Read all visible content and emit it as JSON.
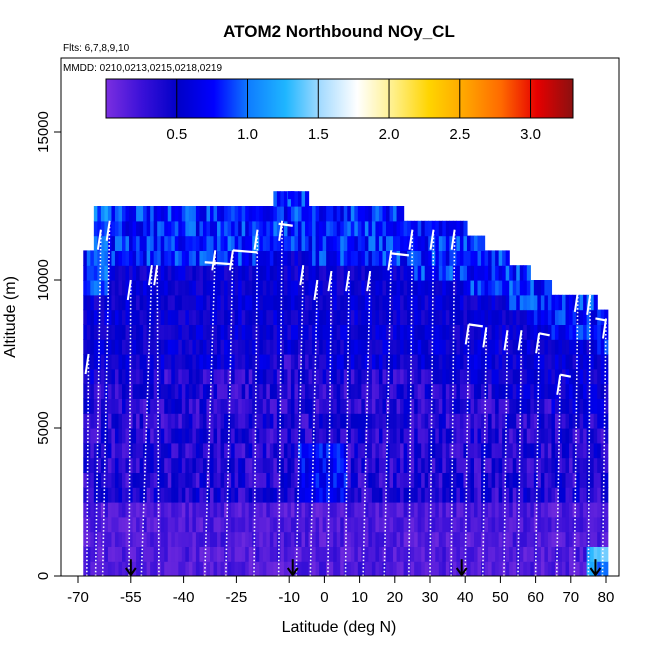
{
  "chart_data": {
    "type": "heatmap",
    "title": "ATOM2 Northbound NOy_CL",
    "flights_label": "Flts: 6,7,8,9,10",
    "dates_label": "MMDD: 0210,0213,0215,0218,0219",
    "xlabel": "Latitude (deg N)",
    "ylabel": "Altitude (m)",
    "xlim": [
      -70,
      85
    ],
    "ylim": [
      0,
      17500
    ],
    "x_ticks": [
      -70,
      -55,
      -40,
      -25,
      -10,
      0,
      10,
      20,
      30,
      40,
      50,
      60,
      70,
      80
    ],
    "x_tick_labels": [
      "-70",
      "-55",
      "-40",
      "-25",
      "-10",
      "0",
      "10",
      "20",
      "30",
      "40",
      "50",
      "60",
      "70",
      "80"
    ],
    "y_ticks": [
      0,
      5000,
      10000,
      15000
    ],
    "y_tick_labels": [
      "0",
      "5000",
      "10000",
      "15000"
    ],
    "colorbar": {
      "range": [
        0,
        3.3
      ],
      "ticks": [
        0.5,
        1.0,
        1.5,
        2.0,
        2.5,
        3.0
      ],
      "tick_labels": [
        "0.5",
        "1.0",
        "1.5",
        "2.0",
        "2.5",
        "3.0"
      ],
      "colors": [
        "#7b2fe0",
        "#3a10d8",
        "#0000c8",
        "#0000ff",
        "#0f7fff",
        "#1fb6ff",
        "#a8dcff",
        "#ffffff",
        "#fff08a",
        "#ffd400",
        "#ffa500",
        "#ff6a00",
        "#e60000",
        "#8b1010"
      ]
    },
    "column_tops": [
      {
        "lat": -68.5,
        "alt": 10000
      },
      {
        "lat": -66,
        "alt": 11000
      },
      {
        "lat": -63,
        "alt": 12500
      },
      {
        "lat": -57,
        "alt": 12500
      },
      {
        "lat": -52,
        "alt": 12500
      },
      {
        "lat": -45,
        "alt": 12500
      },
      {
        "lat": -38,
        "alt": 12500
      },
      {
        "lat": -30,
        "alt": 12500
      },
      {
        "lat": -22,
        "alt": 12500
      },
      {
        "lat": -15,
        "alt": 12500
      },
      {
        "lat": -9.5,
        "alt": 13000
      },
      {
        "lat": -5,
        "alt": 12500
      },
      {
        "lat": 2,
        "alt": 12500
      },
      {
        "lat": 9,
        "alt": 12500
      },
      {
        "lat": 15,
        "alt": 12200
      },
      {
        "lat": 22,
        "alt": 12000
      },
      {
        "lat": 29,
        "alt": 12000
      },
      {
        "lat": 35,
        "alt": 12000
      },
      {
        "lat": 40,
        "alt": 11500
      },
      {
        "lat": 45,
        "alt": 11000
      },
      {
        "lat": 52,
        "alt": 10500
      },
      {
        "lat": 58,
        "alt": 10000
      },
      {
        "lat": 64,
        "alt": 9500
      },
      {
        "lat": 70,
        "alt": 9500
      },
      {
        "lat": 74,
        "alt": 9500
      },
      {
        "lat": 77,
        "alt": 9000
      },
      {
        "lat": 80,
        "alt": 9000
      }
    ],
    "profiles": [
      {
        "lat_bottom": -67.5,
        "lat_top": -67,
        "top_alt": 7500
      },
      {
        "lat_bottom": -65,
        "lat_top": -63.5,
        "top_alt": 11700
      },
      {
        "lat_bottom": -63,
        "lat_top": -61,
        "top_alt": 12000
      },
      {
        "lat_bottom": -55.5,
        "lat_top": -55,
        "top_alt": 10000
      },
      {
        "lat_bottom": -52,
        "lat_top": -49,
        "top_alt": 10500
      },
      {
        "lat_bottom": -47,
        "lat_top": -47.5,
        "top_alt": 10500
      },
      {
        "lat_bottom": -34,
        "lat_top": -31,
        "top_alt": 11000
      },
      {
        "lat_bottom": -28,
        "lat_top": -26,
        "top_alt": 11000
      },
      {
        "lat_bottom": -20,
        "lat_top": -19,
        "top_alt": 11700
      },
      {
        "lat_bottom": -13,
        "lat_top": -12,
        "top_alt": 12000
      },
      {
        "lat_bottom": -8,
        "lat_top": -6,
        "top_alt": 10500
      },
      {
        "lat_bottom": -4,
        "lat_top": -2,
        "top_alt": 10000
      },
      {
        "lat_bottom": 1,
        "lat_top": 2,
        "top_alt": 10300
      },
      {
        "lat_bottom": 6,
        "lat_top": 7,
        "top_alt": 10300
      },
      {
        "lat_bottom": 11,
        "lat_top": 13,
        "top_alt": 10300
      },
      {
        "lat_bottom": 17,
        "lat_top": 19,
        "top_alt": 11000
      },
      {
        "lat_bottom": 24,
        "lat_top": 25,
        "top_alt": 11700
      },
      {
        "lat_bottom": 30,
        "lat_top": 31,
        "top_alt": 11700
      },
      {
        "lat_bottom": 36,
        "lat_top": 37,
        "top_alt": 11700
      },
      {
        "lat_bottom": 40,
        "lat_top": 41,
        "top_alt": 8500
      },
      {
        "lat_bottom": 45,
        "lat_top": 46,
        "top_alt": 8400
      },
      {
        "lat_bottom": 51,
        "lat_top": 52,
        "top_alt": 8300
      },
      {
        "lat_bottom": 55,
        "lat_top": 56,
        "top_alt": 8300
      },
      {
        "lat_bottom": 60,
        "lat_top": 61,
        "top_alt": 8200
      },
      {
        "lat_bottom": 66,
        "lat_top": 67,
        "top_alt": 6800
      },
      {
        "lat_bottom": 71,
        "lat_top": 72,
        "top_alt": 9600
      },
      {
        "lat_bottom": 75,
        "lat_top": 75.5,
        "top_alt": 9500
      },
      {
        "lat_bottom": 79,
        "lat_top": 80,
        "top_alt": 8700
      }
    ],
    "plateaus": [
      {
        "lat_start": -34,
        "lat_end": -26,
        "alt": 10600
      },
      {
        "lat_start": -26,
        "lat_end": -19,
        "alt": 11000
      },
      {
        "lat_start": -13,
        "lat_end": -9,
        "alt": 11900
      },
      {
        "lat_start": -9.5,
        "lat_end": -9.5,
        "alt": 12900
      },
      {
        "lat_start": 19,
        "lat_end": 24,
        "alt": 10900
      },
      {
        "lat_start": 41,
        "lat_end": 45,
        "alt": 8500
      },
      {
        "lat_start": 61,
        "lat_end": 64,
        "alt": 8200
      },
      {
        "lat_start": 67,
        "lat_end": 70,
        "alt": 6800
      },
      {
        "lat_start": 77,
        "lat_end": 80,
        "alt": 8700
      }
    ],
    "arrows": [
      {
        "lat": -55,
        "alt_from": 500,
        "alt_to": 0
      },
      {
        "lat": -9,
        "alt_from": 500,
        "alt_to": 0
      },
      {
        "lat": 39,
        "alt_from": 500,
        "alt_to": 0
      },
      {
        "lat": 77,
        "alt_from": 500,
        "alt_to": 0
      }
    ]
  }
}
